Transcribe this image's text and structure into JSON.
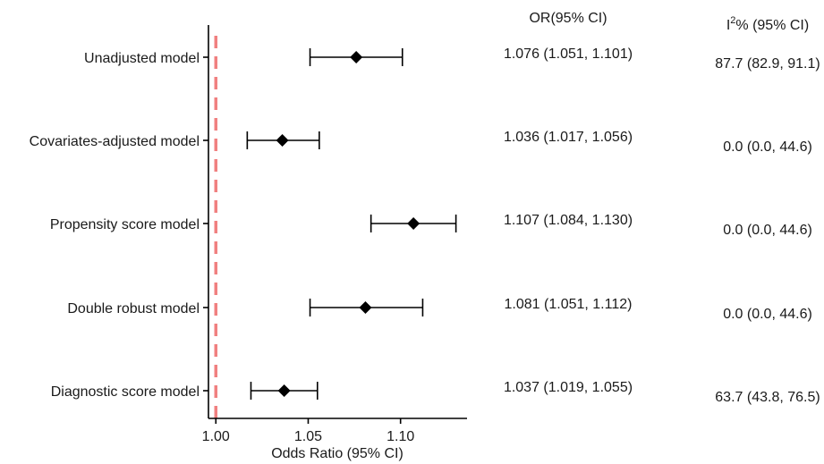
{
  "chart_data": {
    "type": "forest",
    "xlabel": "Odds Ratio (95% CI)",
    "xlim": [
      0.996,
      1.136
    ],
    "x_ticks": [
      1.0,
      1.05,
      1.1
    ],
    "x_tick_labels": [
      "1.00",
      "1.05",
      "1.10"
    ],
    "reference_line": 1.0,
    "reference_color": "#f08080",
    "marker_color": "#000000",
    "rows": [
      {
        "label": "Unadjusted model",
        "or": 1.076,
        "lo": 1.051,
        "hi": 1.101,
        "or_text": "1.076 (1.051, 1.101)",
        "i2_text": "87.7 (82.9, 91.1)"
      },
      {
        "label": "Covariates-adjusted model",
        "or": 1.036,
        "lo": 1.017,
        "hi": 1.056,
        "or_text": "1.036 (1.017, 1.056)",
        "i2_text": "0.0 (0.0, 44.6)"
      },
      {
        "label": "Propensity score model",
        "or": 1.107,
        "lo": 1.084,
        "hi": 1.13,
        "or_text": "1.107 (1.084, 1.130)",
        "i2_text": "0.0 (0.0, 44.6)"
      },
      {
        "label": "Double robust model",
        "or": 1.081,
        "lo": 1.051,
        "hi": 1.112,
        "or_text": "1.081 (1.051, 1.112)",
        "i2_text": "0.0 (0.0, 44.6)"
      },
      {
        "label": "Diagnostic score model",
        "or": 1.037,
        "lo": 1.019,
        "hi": 1.055,
        "or_text": "1.037 (1.019, 1.055)",
        "i2_text": "63.7 (43.8, 76.5)"
      }
    ],
    "columns": {
      "or_header": "OR(95% CI)",
      "i2_header_base": "I",
      "i2_header_sup": "2",
      "i2_header_rest": "% (95% CI)"
    }
  }
}
